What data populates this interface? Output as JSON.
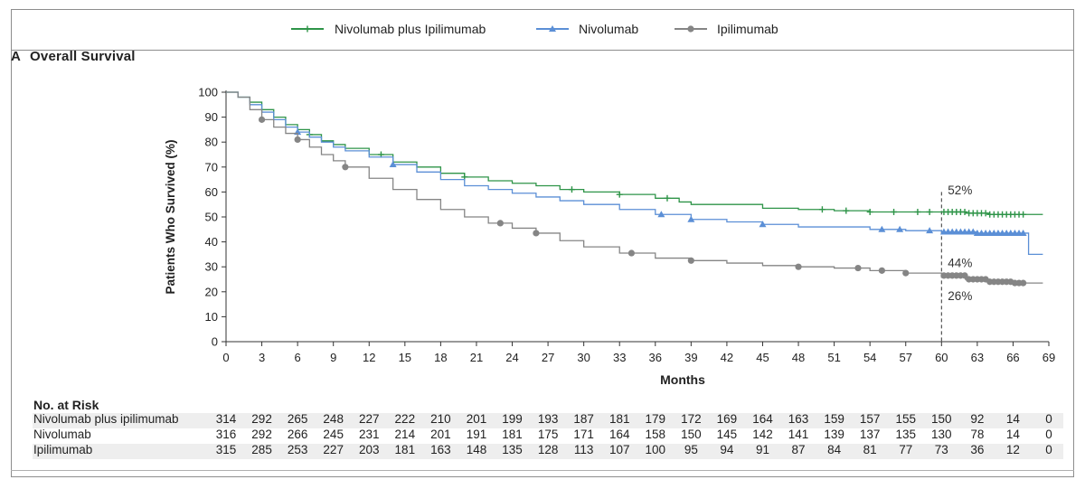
{
  "panel": {
    "letter": "A",
    "title": "Overall Survival"
  },
  "legend": [
    {
      "label": "Nivolumab plus Ipilimumab",
      "color": "#2e9448",
      "marker": "plus-marker"
    },
    {
      "label": "Nivolumab",
      "color": "#5b8fd6",
      "marker": "triangle-marker"
    },
    {
      "label": "Ipilimumab",
      "color": "#858585",
      "marker": "circle-marker"
    }
  ],
  "chart_data": {
    "type": "line",
    "title": "Overall Survival",
    "xlabel": "Months",
    "ylabel": "Patients Who Survived (%)",
    "xlim": [
      0,
      69
    ],
    "ylim": [
      0,
      100
    ],
    "xticks": [
      0,
      3,
      6,
      9,
      12,
      15,
      18,
      21,
      24,
      27,
      30,
      33,
      36,
      39,
      42,
      45,
      48,
      51,
      54,
      57,
      60,
      63,
      66,
      69
    ],
    "yticks": [
      0,
      10,
      20,
      30,
      40,
      50,
      60,
      70,
      80,
      90,
      100
    ],
    "grid": false,
    "legend_position": "top",
    "series": [
      {
        "name": "Nivolumab plus Ipilimumab",
        "color": "#2e9448",
        "marker": "plus",
        "x": [
          0,
          1,
          2,
          3,
          4,
          5,
          6,
          7,
          8,
          9,
          10,
          12,
          14,
          16,
          18,
          20,
          22,
          24,
          26,
          28,
          30,
          33,
          36,
          38,
          39,
          42,
          45,
          48,
          51,
          54,
          57,
          60,
          62,
          64,
          66,
          68.5
        ],
        "y": [
          100,
          98,
          96,
          93,
          90,
          87,
          85,
          83,
          80.5,
          79,
          77.5,
          75,
          72,
          70,
          67.5,
          66,
          64.5,
          63.5,
          62.5,
          61,
          60,
          59,
          57.5,
          56,
          55,
          55,
          53.5,
          53,
          52.5,
          52,
          52,
          52,
          51.5,
          51,
          51,
          51
        ],
        "annotation": "52%"
      },
      {
        "name": "Nivolumab",
        "color": "#5b8fd6",
        "marker": "triangle",
        "x": [
          0,
          1,
          2,
          3,
          4,
          5,
          6,
          7,
          8,
          9,
          10,
          12,
          14,
          16,
          18,
          20,
          22,
          24,
          26,
          28,
          30,
          33,
          36,
          39,
          42,
          45,
          48,
          51,
          54,
          57,
          60,
          63,
          66,
          67.2,
          67.3,
          68.5
        ],
        "y": [
          100,
          98,
          95,
          92,
          89,
          86,
          84,
          82,
          80,
          78,
          76.5,
          74,
          71,
          68,
          65,
          62.5,
          61,
          59.5,
          58,
          56.5,
          55,
          53,
          51,
          49,
          48,
          47,
          46,
          46,
          45,
          44.5,
          44,
          43.5,
          43.5,
          43.5,
          35,
          35
        ],
        "annotation": "44%"
      },
      {
        "name": "Ipilimumab",
        "color": "#858585",
        "marker": "circle",
        "x": [
          0,
          1,
          2,
          3,
          4,
          5,
          6,
          7,
          8,
          9,
          10,
          12,
          14,
          16,
          18,
          20,
          22,
          24,
          26,
          28,
          30,
          33,
          36,
          39,
          42,
          45,
          48,
          51,
          54,
          57,
          60,
          62,
          64,
          66,
          68.5
        ],
        "y": [
          100,
          98,
          93,
          89,
          86,
          83.5,
          81,
          78,
          75,
          72.5,
          70,
          65.5,
          61,
          57,
          53,
          50,
          47.5,
          45.5,
          43.5,
          40.5,
          38,
          35.5,
          33.5,
          32.5,
          31.5,
          30.5,
          30,
          29.5,
          28.5,
          27.5,
          26.5,
          25,
          24,
          23.5,
          23.5
        ],
        "annotation": "26%"
      }
    ],
    "reference_line": {
      "x": 60,
      "style": "dashed"
    }
  },
  "risk_table": {
    "title": "No. at Risk",
    "rows": [
      {
        "label": "Nivolumab plus ipilimumab",
        "values": [
          "314",
          "292",
          "265",
          "248",
          "227",
          "222",
          "210",
          "201",
          "199",
          "193",
          "187",
          "181",
          "179",
          "172",
          "169",
          "164",
          "163",
          "159",
          "157",
          "155",
          "150",
          "92",
          "14",
          "0"
        ]
      },
      {
        "label": "Nivolumab",
        "values": [
          "316",
          "292",
          "266",
          "245",
          "231",
          "214",
          "201",
          "191",
          "181",
          "175",
          "171",
          "164",
          "158",
          "150",
          "145",
          "142",
          "141",
          "139",
          "137",
          "135",
          "130",
          "78",
          "14",
          "0"
        ]
      },
      {
        "label": "Ipilimumab",
        "values": [
          "315",
          "285",
          "253",
          "227",
          "203",
          "181",
          "163",
          "148",
          "135",
          "128",
          "113",
          "107",
          "100",
          "95",
          "94",
          "91",
          "87",
          "84",
          "81",
          "77",
          "73",
          "36",
          "12",
          "0"
        ]
      }
    ]
  }
}
